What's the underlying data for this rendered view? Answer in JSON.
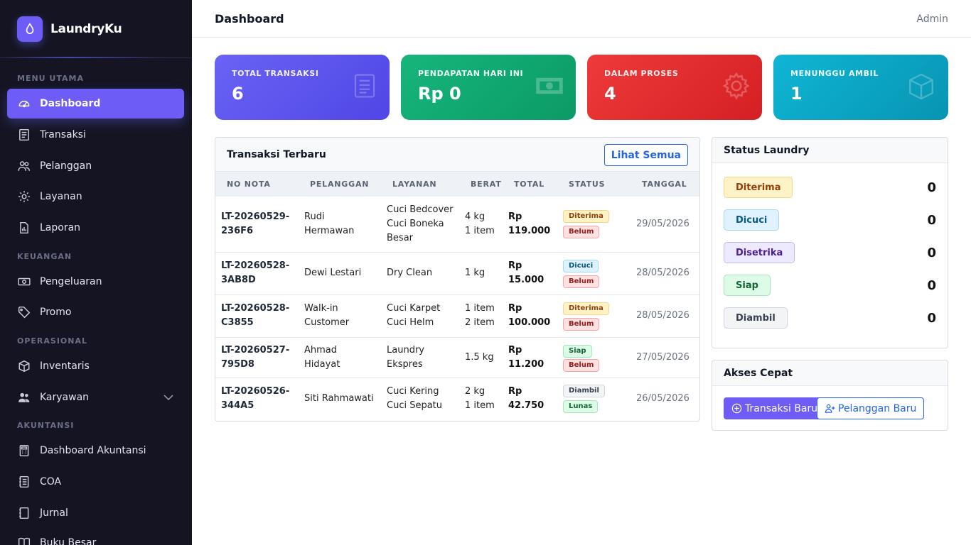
{
  "brand": {
    "name": "LaundryKu"
  },
  "header": {
    "title": "Dashboard",
    "user": "Admin"
  },
  "sidebar": {
    "sections": [
      "MENU UTAMA",
      "KEUANGAN",
      "OPERASIONAL",
      "AKUNTANSI"
    ],
    "items": [
      {
        "label": "Dashboard",
        "icon": "speedometer-icon",
        "active": true
      },
      {
        "label": "Transaksi",
        "icon": "receipt-icon"
      },
      {
        "label": "Pelanggan",
        "icon": "people-icon"
      },
      {
        "label": "Layanan",
        "icon": "gear-icon"
      },
      {
        "label": "Laporan",
        "icon": "report-icon"
      },
      {
        "label": "Pengeluaran",
        "icon": "cash-icon"
      },
      {
        "label": "Promo",
        "icon": "tag-icon"
      },
      {
        "label": "Inventaris",
        "icon": "box-icon"
      },
      {
        "label": "Karyawan",
        "icon": "people-fill-icon",
        "expandable": true
      },
      {
        "label": "Dashboard Akuntansi",
        "icon": "calculator-icon"
      },
      {
        "label": "COA",
        "icon": "journal-list-icon"
      },
      {
        "label": "Jurnal",
        "icon": "journal-icon"
      },
      {
        "label": "Buku Besar",
        "icon": "book-icon"
      }
    ]
  },
  "stats": [
    {
      "label": "TOTAL TRANSAKSI",
      "value": "6",
      "color": "#5b55f0",
      "icon": "receipt-icon"
    },
    {
      "label": "PENDAPATAN HARI INI",
      "value": "Rp 0",
      "color": "#13a873",
      "icon": "cash-icon"
    },
    {
      "label": "DALAM PROSES",
      "value": "4",
      "color": "#e3282b",
      "icon": "gear-icon"
    },
    {
      "label": "MENUNGGU AMBIL",
      "value": "1",
      "color": "#0aa9c9",
      "icon": "box-icon"
    }
  ],
  "transactions": {
    "title": "Transaksi Terbaru",
    "view_all": "Lihat Semua",
    "columns": [
      "NO NOTA",
      "PELANGGAN",
      "LAYANAN",
      "BERAT",
      "TOTAL",
      "STATUS",
      "TANGGAL"
    ],
    "rows": [
      {
        "nota": [
          "LT-20260529-",
          "236F6"
        ],
        "customer": [
          "Rudi Hermawan"
        ],
        "services": [
          "Cuci Bedcover",
          "Cuci Boneka",
          "Besar"
        ],
        "weights": [
          "4 kg",
          "1 item"
        ],
        "total": [
          "Rp",
          "119.000"
        ],
        "status": [
          {
            "text": "Diterima",
            "kind": "diterima"
          },
          {
            "text": "Belum",
            "kind": "belum"
          }
        ],
        "status_inline": false,
        "date": "29/05/2026"
      },
      {
        "nota": [
          "LT-20260528-",
          "3AB8D"
        ],
        "customer": [
          "Dewi Lestari"
        ],
        "services": [
          "Dry Clean"
        ],
        "weights": [
          "1 kg"
        ],
        "total": [
          "Rp 15.000"
        ],
        "status": [
          {
            "text": "Dicuci",
            "kind": "dicuci"
          },
          {
            "text": "Belum",
            "kind": "belum"
          }
        ],
        "status_inline": false,
        "date": "28/05/2026"
      },
      {
        "nota": [
          "LT-20260528-",
          "C3855"
        ],
        "customer": [
          "Walk-in",
          "Customer"
        ],
        "services": [
          "Cuci Karpet",
          "Cuci Helm"
        ],
        "weights": [
          "1 item",
          "2 item"
        ],
        "total": [
          "Rp",
          "100.000"
        ],
        "status": [
          {
            "text": "Diterima",
            "kind": "diterima"
          },
          {
            "text": "Belum",
            "kind": "belum"
          }
        ],
        "status_inline": false,
        "date": "28/05/2026"
      },
      {
        "nota": [
          "LT-20260527-",
          "795D8"
        ],
        "customer": [
          "Ahmad Hidayat"
        ],
        "services": [
          "Laundry",
          "Ekspres"
        ],
        "weights": [
          "1.5 kg"
        ],
        "total": [
          "Rp 11.200"
        ],
        "status": [
          {
            "text": "Siap",
            "kind": "siap"
          },
          {
            "text": "Belum",
            "kind": "belum"
          }
        ],
        "status_inline": true,
        "date": "27/05/2026"
      },
      {
        "nota": [
          "LT-20260526-",
          "344A5"
        ],
        "customer": [
          "Siti Rahmawati"
        ],
        "services": [
          "Cuci Kering",
          "Cuci Sepatu"
        ],
        "weights": [
          "2 kg",
          "1 item"
        ],
        "total": [
          "Rp",
          "42.750"
        ],
        "status": [
          {
            "text": "Diambil",
            "kind": "diambil"
          },
          {
            "text": "Lunas",
            "kind": "lunas"
          }
        ],
        "status_inline": false,
        "date": "26/05/2026"
      }
    ]
  },
  "status_panel": {
    "title": "Status Laundry",
    "items": [
      {
        "label": "Diterima",
        "count": "0",
        "bg": "#fef3c7",
        "fg": "#92400e",
        "border": "#fcd38d"
      },
      {
        "label": "Dicuci",
        "count": "0",
        "bg": "#e0f2fe",
        "fg": "#075985",
        "border": "#a5d8f3"
      },
      {
        "label": "Disetrika",
        "count": "0",
        "bg": "#ede9fe",
        "fg": "#4c1d95",
        "border": "#c4b5fd"
      },
      {
        "label": "Siap",
        "count": "0",
        "bg": "#dcfce7",
        "fg": "#166534",
        "border": "#a7e3bd"
      },
      {
        "label": "Diambil",
        "count": "0",
        "bg": "#f3f4f6",
        "fg": "#374151",
        "border": "#d1d5db"
      }
    ]
  },
  "quick_access": {
    "title": "Akses Cepat",
    "new_transaction": "Transaksi Baru",
    "new_customer": "Pelanggan Baru"
  }
}
